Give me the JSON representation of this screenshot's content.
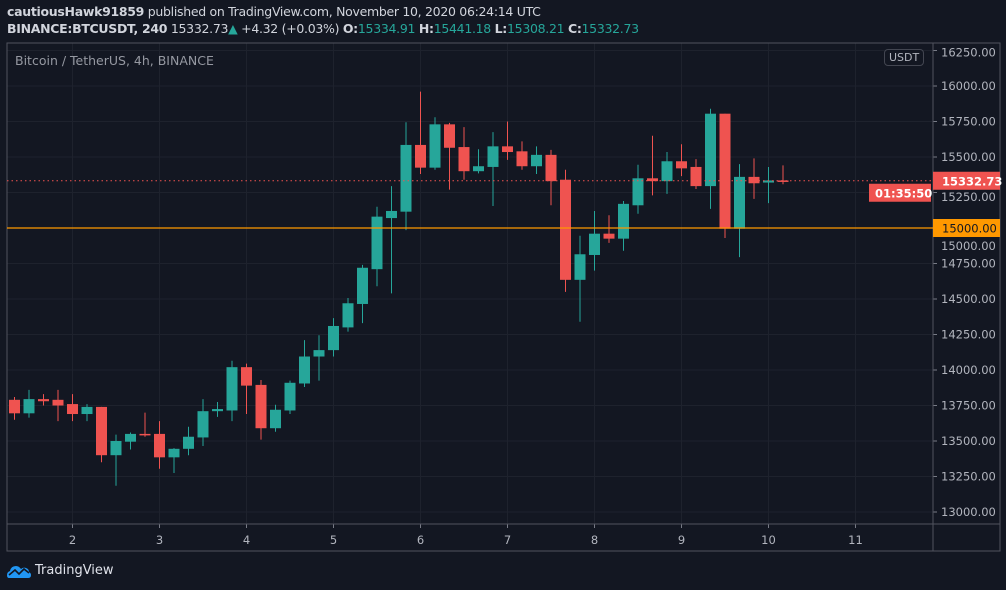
{
  "header": {
    "user": "cautiousHawk91859",
    "published": "published on TradingView.com, November 10, 2020 06:24:14 UTC",
    "symbol": "BINANCE:BTCUSDT, 240",
    "last": "15332.73",
    "change_icon": "triangle-up-icon",
    "change": "+4.32 (+0.03%)",
    "o_label": "O:",
    "o": "15334.91",
    "h_label": "H:",
    "h": "15441.18",
    "l_label": "L:",
    "l": "15308.21",
    "c_label": "C:",
    "c": "15332.73"
  },
  "footer": {
    "brand": "TradingView"
  },
  "colors": {
    "up": "#26a69a",
    "down": "#ef5350",
    "level": "#ff9800",
    "background": "#131722",
    "grid": "#1e222d",
    "logo": "#2196f3"
  },
  "chart_data": {
    "type": "candlestick",
    "title": "Bitcoin / TetherUS, 4h, BINANCE",
    "currency": "USDT",
    "ylim": [
      12930,
      16250
    ],
    "grid": true,
    "y_ticks": [
      "13000.00",
      "13250.00",
      "13500.00",
      "13750.00",
      "14000.00",
      "14250.00",
      "14500.00",
      "14750.00",
      "15000.00",
      "15250.00",
      "15500.00",
      "15750.00",
      "16000.00",
      "16250.00"
    ],
    "x_ticks": [
      "2",
      "3",
      "4",
      "5",
      "6",
      "7",
      "8",
      "9",
      "10",
      "11"
    ],
    "ohlc_fields": [
      "open",
      "high",
      "low",
      "close"
    ],
    "candles": [
      [
        13790,
        13810,
        13650,
        13695
      ],
      [
        13695,
        13860,
        13665,
        13795
      ],
      [
        13795,
        13830,
        13750,
        13780
      ],
      [
        13790,
        13860,
        13640,
        13750
      ],
      [
        13760,
        13830,
        13640,
        13690
      ],
      [
        13690,
        13760,
        13640,
        13740
      ],
      [
        13740,
        13740,
        13350,
        13400
      ],
      [
        13400,
        13545,
        13185,
        13500
      ],
      [
        13495,
        13560,
        13440,
        13550
      ],
      [
        13550,
        13700,
        13530,
        13540
      ],
      [
        13550,
        13640,
        13305,
        13385
      ],
      [
        13385,
        13450,
        13275,
        13445
      ],
      [
        13445,
        13600,
        13400,
        13530
      ],
      [
        13525,
        13795,
        13465,
        13710
      ],
      [
        13710,
        13775,
        13670,
        13725
      ],
      [
        13715,
        14065,
        13640,
        14020
      ],
      [
        14020,
        14045,
        13690,
        13890
      ],
      [
        13895,
        13930,
        13510,
        13590
      ],
      [
        13590,
        13755,
        13565,
        13720
      ],
      [
        13715,
        13925,
        13690,
        13910
      ],
      [
        13905,
        14210,
        13880,
        14095
      ],
      [
        14095,
        14245,
        13925,
        14140
      ],
      [
        14140,
        14365,
        14095,
        14310
      ],
      [
        14300,
        14507,
        14270,
        14470
      ],
      [
        14465,
        14740,
        14330,
        14720
      ],
      [
        14710,
        15150,
        14590,
        15080
      ],
      [
        15070,
        15295,
        14540,
        15120
      ],
      [
        15115,
        15745,
        14985,
        15585
      ],
      [
        15585,
        15960,
        15380,
        15425
      ],
      [
        15425,
        15780,
        15410,
        15730
      ],
      [
        15730,
        15740,
        15270,
        15565
      ],
      [
        15570,
        15710,
        15340,
        15400
      ],
      [
        15400,
        15555,
        15385,
        15435
      ],
      [
        15430,
        15675,
        15155,
        15575
      ],
      [
        15575,
        15750,
        15480,
        15535
      ],
      [
        15540,
        15610,
        15410,
        15435
      ],
      [
        15435,
        15575,
        15380,
        15515
      ],
      [
        15515,
        15550,
        15160,
        15330
      ],
      [
        15340,
        15410,
        14550,
        14635
      ],
      [
        14635,
        14945,
        14340,
        14815
      ],
      [
        14810,
        15120,
        14700,
        14960
      ],
      [
        14960,
        15090,
        14895,
        14925
      ],
      [
        14925,
        15190,
        14840,
        15170
      ],
      [
        15160,
        15445,
        15100,
        15350
      ],
      [
        15350,
        15650,
        15230,
        15330
      ],
      [
        15330,
        15535,
        15240,
        15470
      ],
      [
        15470,
        15590,
        15365,
        15420
      ],
      [
        15430,
        15485,
        15275,
        15295
      ],
      [
        15295,
        15840,
        15135,
        15805
      ],
      [
        15805,
        15805,
        14930,
        14995
      ],
      [
        14995,
        15450,
        14795,
        15360
      ],
      [
        15360,
        15490,
        15205,
        15315
      ],
      [
        15320,
        15430,
        15175,
        15335
      ],
      [
        15334.91,
        15441.18,
        15308.21,
        15332.73
      ]
    ],
    "horizontal_line": {
      "price": 15000,
      "label": "15000.00"
    },
    "last_price": {
      "label": "15332.73",
      "countdown": "01:35:50"
    }
  }
}
